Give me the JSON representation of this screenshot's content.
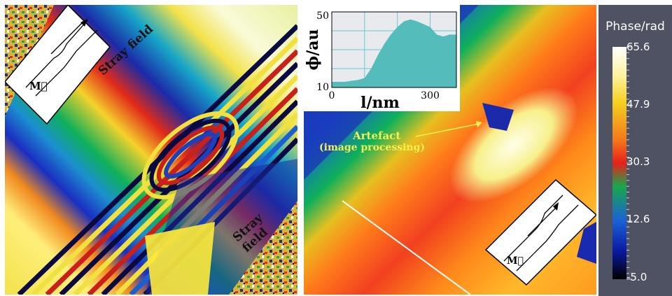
{
  "left_panel": {
    "inset_vector_label": "M⃗",
    "stray_field_label_1": "Stray field",
    "stray_field_label_2": "Stray field"
  },
  "right_panel": {
    "artefact_label_line1": "Artefact",
    "artefact_label_line2": "(image processing)",
    "inset_vector_label": "M⃗",
    "profile_inset": {
      "ylabel": "ϕ/au",
      "xlabel": "l/nm",
      "ytick_top": "50",
      "ytick_bottom": "10",
      "xtick_0": "0",
      "xtick_300": "300"
    }
  },
  "colorbar": {
    "title": "Phase/rad",
    "ticks": [
      "65.6",
      "47.9",
      "30.3",
      "12.6",
      "-5.0"
    ]
  },
  "chart_data": {
    "type": "area",
    "x": [
      0,
      20,
      40,
      60,
      80,
      100,
      120,
      140,
      160,
      180,
      200,
      220,
      240,
      260,
      280,
      300,
      320,
      340,
      360,
      380
    ],
    "y": [
      13,
      13,
      13,
      13.5,
      14,
      15,
      20,
      27,
      33,
      38,
      42,
      45,
      46,
      45,
      43.5,
      42,
      38,
      37,
      38,
      38
    ],
    "xlabel": "l/nm",
    "ylabel": "ϕ/au",
    "xlim": [
      0,
      380
    ],
    "ylim": [
      10,
      50
    ],
    "grid": true,
    "color": "#55bcbc"
  }
}
